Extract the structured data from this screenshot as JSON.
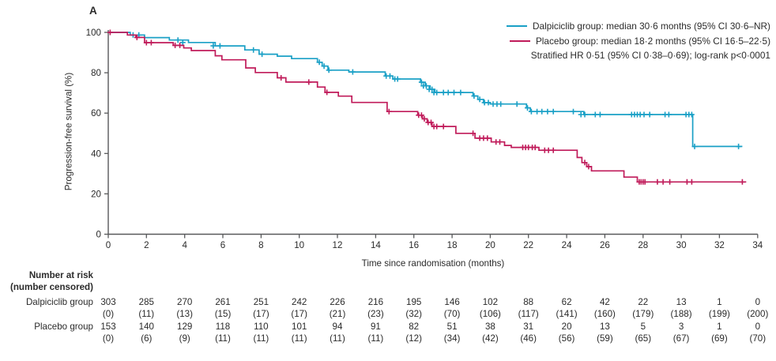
{
  "panel_label": "A",
  "colors": {
    "dalpiciclib": "#1aa0c6",
    "placebo": "#c01b5a",
    "axis": "#58595b",
    "text": "#2b2b2b"
  },
  "legend": {
    "entries": [
      {
        "label": "Dalpiciclib group: median 30·6 months (95% CI 30·6–NR)",
        "color": "#1aa0c6"
      },
      {
        "label": "Placebo group: median 18·2 months (95% CI 16·5–22·5)",
        "color": "#c01b5a"
      }
    ],
    "note": "Stratified HR 0·51 (95% CI 0·38–0·69); log-rank p<0·0001"
  },
  "chart_data": {
    "type": "line",
    "subtype": "kaplan-meier-step",
    "title": "",
    "xlabel": "Time since randomisation (months)",
    "ylabel": "Progression-free survival (%)",
    "xlim": [
      0,
      34
    ],
    "ylim": [
      0,
      100
    ],
    "xticks": [
      0,
      2,
      4,
      6,
      8,
      10,
      12,
      14,
      16,
      18,
      20,
      22,
      24,
      26,
      28,
      30,
      32,
      34
    ],
    "yticks": [
      0,
      20,
      40,
      60,
      80,
      100
    ],
    "grid": false,
    "legend_position": "top-right",
    "series": [
      {
        "name": "Dalpiciclib group",
        "color": "#1aa0c6",
        "median_months": "30·6",
        "ci": "30·6–NR",
        "end": 33.2,
        "steps": [
          [
            0,
            100
          ],
          [
            1.15,
            98.7
          ],
          [
            1.9,
            97.4
          ],
          [
            3.2,
            96.2
          ],
          [
            4.2,
            95.0
          ],
          [
            5.6,
            93.3
          ],
          [
            7.15,
            91.3
          ],
          [
            7.9,
            89.2
          ],
          [
            8.85,
            88.2
          ],
          [
            9.6,
            87.0
          ],
          [
            10.95,
            85.2
          ],
          [
            11.2,
            83.3
          ],
          [
            11.5,
            81.3
          ],
          [
            12.6,
            80.4
          ],
          [
            14.5,
            78.4
          ],
          [
            14.9,
            76.9
          ],
          [
            16.35,
            75.3
          ],
          [
            16.6,
            73.5
          ],
          [
            16.85,
            71.8
          ],
          [
            17.1,
            70.2
          ],
          [
            19.1,
            68.5
          ],
          [
            19.35,
            66.8
          ],
          [
            19.65,
            65.2
          ],
          [
            20.0,
            64.5
          ],
          [
            21.9,
            62.6
          ],
          [
            22.1,
            60.8
          ],
          [
            24.9,
            59.3
          ],
          [
            30.6,
            43.5
          ]
        ],
        "censors": [
          [
            1.3,
            98.7
          ],
          [
            1.6,
            98.7
          ],
          [
            3.65,
            96.2
          ],
          [
            3.9,
            95.0
          ],
          [
            5.5,
            93.3
          ],
          [
            5.85,
            93.3
          ],
          [
            7.6,
            91.3
          ],
          [
            8.05,
            89.2
          ],
          [
            11.05,
            85.2
          ],
          [
            11.3,
            83.3
          ],
          [
            11.55,
            81.3
          ],
          [
            12.8,
            80.4
          ],
          [
            14.55,
            78.4
          ],
          [
            14.75,
            78.4
          ],
          [
            15.0,
            76.9
          ],
          [
            15.15,
            76.9
          ],
          [
            16.4,
            75.3
          ],
          [
            16.5,
            73.5
          ],
          [
            16.65,
            73.5
          ],
          [
            16.8,
            71.8
          ],
          [
            16.95,
            71.8
          ],
          [
            17.05,
            70.2
          ],
          [
            17.2,
            70.2
          ],
          [
            17.55,
            70.2
          ],
          [
            17.8,
            70.2
          ],
          [
            18.1,
            70.2
          ],
          [
            18.45,
            70.2
          ],
          [
            19.15,
            68.5
          ],
          [
            19.45,
            66.8
          ],
          [
            19.7,
            65.2
          ],
          [
            19.9,
            65.2
          ],
          [
            20.15,
            64.5
          ],
          [
            20.35,
            64.5
          ],
          [
            20.55,
            64.5
          ],
          [
            21.4,
            64.5
          ],
          [
            21.95,
            62.6
          ],
          [
            22.15,
            60.8
          ],
          [
            22.45,
            60.8
          ],
          [
            22.7,
            60.8
          ],
          [
            23.0,
            60.8
          ],
          [
            23.3,
            60.8
          ],
          [
            24.35,
            60.8
          ],
          [
            24.75,
            59.3
          ],
          [
            24.95,
            59.3
          ],
          [
            25.5,
            59.3
          ],
          [
            25.75,
            59.3
          ],
          [
            27.4,
            59.3
          ],
          [
            27.55,
            59.3
          ],
          [
            27.7,
            59.3
          ],
          [
            27.85,
            59.3
          ],
          [
            28.05,
            59.3
          ],
          [
            28.35,
            59.3
          ],
          [
            29.15,
            59.3
          ],
          [
            29.35,
            59.3
          ],
          [
            30.25,
            59.3
          ],
          [
            30.4,
            59.3
          ],
          [
            30.55,
            59.3
          ],
          [
            30.7,
            43.5
          ],
          [
            33.0,
            43.5
          ]
        ]
      },
      {
        "name": "Placebo group",
        "color": "#c01b5a",
        "median_months": "18·2",
        "ci": "16·5–22·5",
        "end": 33.4,
        "steps": [
          [
            0,
            100
          ],
          [
            1.0,
            98.7
          ],
          [
            1.45,
            97.5
          ],
          [
            1.9,
            94.9
          ],
          [
            3.4,
            93.6
          ],
          [
            3.95,
            92.3
          ],
          [
            4.35,
            91.0
          ],
          [
            5.6,
            88.4
          ],
          [
            5.95,
            86.4
          ],
          [
            7.2,
            82.4
          ],
          [
            7.7,
            80.1
          ],
          [
            8.85,
            77.5
          ],
          [
            9.3,
            75.4
          ],
          [
            10.95,
            72.9
          ],
          [
            11.35,
            70.3
          ],
          [
            12.05,
            68.4
          ],
          [
            12.75,
            65.3
          ],
          [
            14.6,
            60.8
          ],
          [
            16.2,
            59.0
          ],
          [
            16.45,
            57.2
          ],
          [
            16.7,
            55.4
          ],
          [
            16.95,
            53.4
          ],
          [
            18.2,
            50.0
          ],
          [
            19.2,
            47.6
          ],
          [
            20.05,
            45.7
          ],
          [
            20.75,
            44.0
          ],
          [
            21.1,
            43.0
          ],
          [
            22.55,
            41.6
          ],
          [
            24.55,
            38.0
          ],
          [
            24.8,
            35.5
          ],
          [
            25.05,
            33.5
          ],
          [
            25.3,
            31.4
          ],
          [
            27.0,
            28.3
          ],
          [
            27.7,
            25.9
          ]
        ],
        "censors": [
          [
            0.1,
            100
          ],
          [
            1.5,
            97.5
          ],
          [
            2.0,
            94.9
          ],
          [
            2.25,
            94.9
          ],
          [
            3.5,
            93.6
          ],
          [
            3.75,
            93.6
          ],
          [
            9.05,
            77.5
          ],
          [
            10.5,
            75.4
          ],
          [
            11.45,
            70.3
          ],
          [
            14.7,
            60.8
          ],
          [
            16.25,
            59.0
          ],
          [
            16.4,
            59.0
          ],
          [
            16.55,
            57.2
          ],
          [
            16.75,
            55.4
          ],
          [
            16.9,
            55.4
          ],
          [
            17.05,
            53.4
          ],
          [
            17.2,
            53.4
          ],
          [
            17.55,
            53.4
          ],
          [
            19.1,
            50.0
          ],
          [
            19.45,
            47.6
          ],
          [
            19.65,
            47.6
          ],
          [
            19.85,
            47.6
          ],
          [
            20.3,
            45.7
          ],
          [
            20.5,
            45.7
          ],
          [
            21.7,
            43.0
          ],
          [
            21.85,
            43.0
          ],
          [
            22.0,
            43.0
          ],
          [
            22.2,
            43.0
          ],
          [
            22.35,
            43.0
          ],
          [
            22.85,
            41.6
          ],
          [
            23.05,
            41.6
          ],
          [
            23.3,
            41.6
          ],
          [
            24.95,
            35.5
          ],
          [
            25.15,
            33.5
          ],
          [
            27.8,
            25.9
          ],
          [
            27.9,
            25.9
          ],
          [
            28.0,
            25.9
          ],
          [
            28.1,
            25.9
          ],
          [
            28.75,
            25.9
          ],
          [
            29.05,
            25.9
          ],
          [
            29.4,
            25.9
          ],
          [
            30.3,
            25.9
          ],
          [
            30.55,
            25.9
          ],
          [
            33.2,
            25.9
          ]
        ]
      }
    ]
  },
  "risk_table": {
    "title": "Number at risk",
    "subtitle": "(number censored)",
    "rows": [
      {
        "group": "Dalpiciclib group",
        "at_risk": [
          303,
          285,
          270,
          261,
          251,
          242,
          226,
          216,
          195,
          146,
          102,
          88,
          62,
          42,
          22,
          13,
          1,
          0
        ],
        "censored": [
          "(0)",
          "(11)",
          "(13)",
          "(15)",
          "(17)",
          "(17)",
          "(21)",
          "(23)",
          "(32)",
          "(70)",
          "(106)",
          "(117)",
          "(141)",
          "(160)",
          "(179)",
          "(188)",
          "(199)",
          "(200)"
        ]
      },
      {
        "group": "Placebo group",
        "at_risk": [
          153,
          140,
          129,
          118,
          110,
          101,
          94,
          91,
          82,
          51,
          38,
          31,
          20,
          13,
          5,
          3,
          1,
          0
        ],
        "censored": [
          "(0)",
          "(6)",
          "(9)",
          "(11)",
          "(11)",
          "(11)",
          "(11)",
          "(11)",
          "(12)",
          "(34)",
          "(42)",
          "(46)",
          "(56)",
          "(59)",
          "(65)",
          "(67)",
          "(69)",
          "(70)"
        ]
      }
    ]
  }
}
